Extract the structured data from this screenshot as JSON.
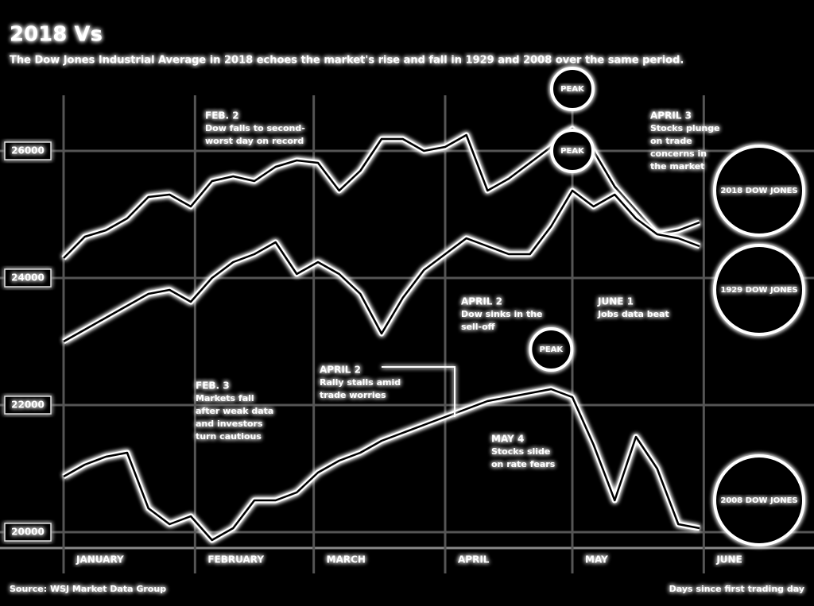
{
  "chart_data": {
    "type": "line",
    "title": "2018 Vs",
    "subtitle": "The Dow Jones Industrial Average in 2018 echoes the market's rise and fall in 1929 and 2008 over the same period.",
    "x": [
      0,
      5,
      10,
      15,
      20,
      25,
      30,
      35,
      40,
      45,
      50,
      55,
      60,
      65,
      70,
      75,
      80,
      85,
      90,
      95,
      100,
      105,
      110,
      115,
      120,
      125,
      130,
      135,
      140,
      145,
      150
    ],
    "xlim": [
      -15,
      177
    ],
    "xticks": [
      {
        "value": 0,
        "label": "JANUARY"
      },
      {
        "value": 31,
        "label": "FEBRUARY"
      },
      {
        "value": 59,
        "label": "MARCH"
      },
      {
        "value": 90,
        "label": "APRIL"
      },
      {
        "value": 120,
        "label": "MAY"
      },
      {
        "value": 151,
        "label": "JUNE"
      }
    ],
    "ylim": [
      19750,
      26875
    ],
    "yticks": [
      20000,
      22000,
      24000,
      26000
    ],
    "grid": true,
    "series": [
      {
        "name": "2018 DOW JONES",
        "color": "#ffffff",
        "values": [
          24313,
          24650,
          24750,
          24938,
          25275,
          25313,
          25125,
          25525,
          25600,
          25525,
          25750,
          25850,
          25813,
          25375,
          25688,
          26188,
          26188,
          26000,
          26063,
          26250,
          25375,
          25563,
          25813,
          26063,
          26350,
          26000,
          25438,
          25063,
          24688,
          24750,
          24875
        ]
      },
      {
        "name": "1929 DOW JONES",
        "color": "#ffffff",
        "values": [
          23000,
          23188,
          23375,
          23563,
          23750,
          23813,
          23625,
          24000,
          24250,
          24375,
          24563,
          24063,
          24250,
          24063,
          23750,
          23125,
          23688,
          24125,
          24375,
          24625,
          24500,
          24375,
          24375,
          24813,
          25375,
          25125,
          25313,
          24938,
          24688,
          24625,
          24500
        ]
      },
      {
        "name": "2008 DOW JONES",
        "color": "#ffffff",
        "values": [
          20875,
          21063,
          21188,
          21250,
          20375,
          20125,
          20250,
          19875,
          20063,
          20500,
          20500,
          20625,
          20938,
          21125,
          21250,
          21438,
          21563,
          21688,
          21813,
          21938,
          22063,
          22125,
          22188,
          22250,
          22125,
          21375,
          20500,
          21500,
          21000,
          20125,
          20063
        ]
      }
    ],
    "peak_label": "PEAK",
    "annotations": [
      {
        "lines": [
          "FEB. 2",
          "Dow falls to second-",
          "worst day on record"
        ]
      },
      {
        "lines": [
          "APRIL 3",
          "Stocks plunge",
          "on trade",
          "concerns in",
          "the market"
        ]
      },
      {
        "lines": [
          "APRIL 2",
          "Dow sinks in the",
          "sell-off"
        ]
      },
      {
        "lines": [
          "JUNE 1",
          "Jobs data beat"
        ]
      },
      {
        "lines": [
          "FEB. 3",
          "Markets fall",
          "after weak data",
          "and investors",
          "turn cautious"
        ]
      },
      {
        "lines": [
          "APRIL 2",
          "Rally stalls amid",
          "trade worries"
        ]
      },
      {
        "lines": [
          "MAY 4",
          "Stocks slide",
          "on rate fears"
        ]
      }
    ],
    "source": "Source: WSJ Market Data Group",
    "note": "Days since first trading day"
  }
}
